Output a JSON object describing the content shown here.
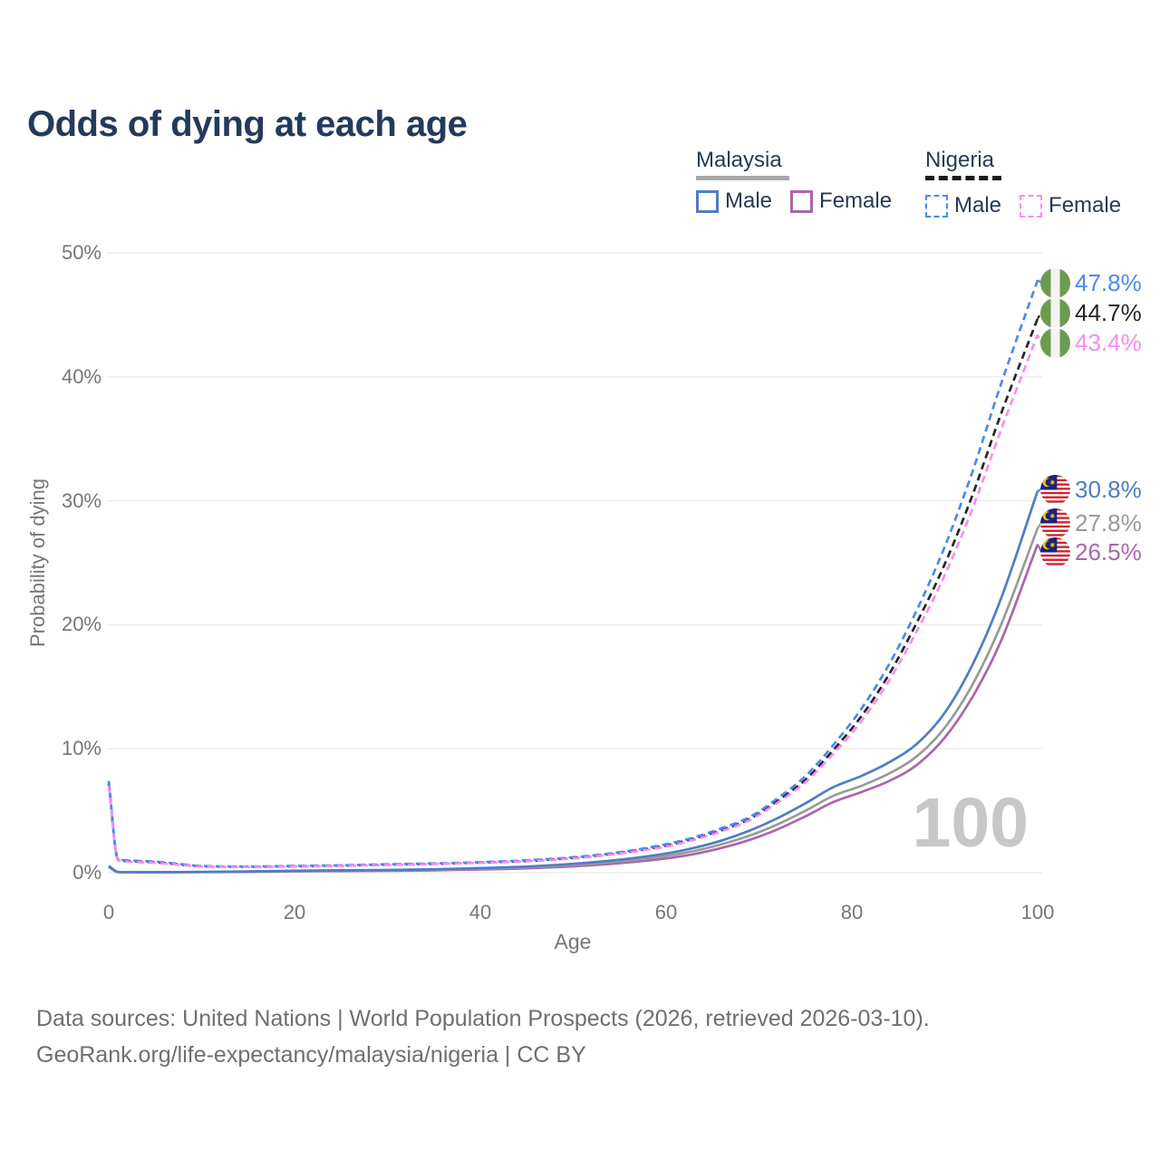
{
  "page": {
    "title": "Odds of dying at each age"
  },
  "legend": {
    "malaysia": {
      "label": "Malaysia",
      "male_label": "Male",
      "female_label": "Female"
    },
    "nigeria": {
      "label": "Nigeria",
      "male_label": "Male",
      "female_label": "Female"
    }
  },
  "colors": {
    "title_text": "#233a5b",
    "legend_text": "#263a58",
    "axis_text": "#767676",
    "grid": "#ececec",
    "watermark": "#c7c7c7",
    "footer_text": "#6f6f6f",
    "malaysia_underline": "#a8a8a8",
    "nigeria_underline": "#1a1a1a",
    "malaysia_male": "#4e7dc4",
    "malaysia_all": "#9a9a9a",
    "malaysia_female": "#aa66ad",
    "nigeria_male": "#4a8af0",
    "nigeria_all": "#262626",
    "nigeria_female": "#f98bf2",
    "flag_nigeria_green": "#6b9c4e",
    "flag_malaysia_red": "#d0232e",
    "flag_malaysia_blue": "#1a237a",
    "flag_malaysia_yellow": "#f8c300",
    "flag_white": "#f4f4f0"
  },
  "chart_data": {
    "type": "line",
    "title": "Odds of dying at each age",
    "xlabel": "Age",
    "ylabel": "Probability of dying",
    "xlim": [
      0,
      100
    ],
    "ylim": [
      0,
      50
    ],
    "x_ticks": [
      0,
      20,
      40,
      60,
      80,
      100
    ],
    "y_tick_labels": [
      "0%",
      "10%",
      "20%",
      "30%",
      "40%",
      "50%"
    ],
    "grid": "horizontal",
    "age_watermark": "100",
    "series": [
      {
        "name": "Nigeria Male",
        "country": "Nigeria",
        "sex": "Male",
        "dashed": true,
        "color": "#4a8af0",
        "end_label": "47.8%",
        "end_value": 47.8,
        "flag": "nigeria",
        "ages": [
          0,
          1,
          2,
          5,
          10,
          15,
          20,
          25,
          30,
          35,
          40,
          45,
          50,
          55,
          60,
          63,
          66,
          69,
          72,
          75,
          78,
          81,
          84,
          87,
          90,
          93,
          96,
          100
        ],
        "values": [
          7.4,
          1.1,
          1.0,
          0.9,
          0.55,
          0.5,
          0.55,
          0.6,
          0.68,
          0.75,
          0.85,
          1.0,
          1.25,
          1.65,
          2.3,
          2.85,
          3.6,
          4.5,
          6.0,
          7.8,
          10.3,
          13.2,
          16.8,
          21.2,
          26.3,
          32.4,
          39.3,
          47.8
        ]
      },
      {
        "name": "Nigeria Overall",
        "country": "Nigeria",
        "sex": "Both",
        "dashed": true,
        "color": "#262626",
        "end_label": "44.7%",
        "end_value": 44.7,
        "flag": "nigeria",
        "ages": [
          0,
          1,
          2,
          5,
          10,
          15,
          20,
          25,
          30,
          35,
          40,
          45,
          50,
          55,
          60,
          63,
          66,
          69,
          72,
          75,
          78,
          81,
          84,
          87,
          90,
          93,
          96,
          100
        ],
        "values": [
          7.2,
          1.05,
          0.95,
          0.85,
          0.52,
          0.48,
          0.52,
          0.58,
          0.65,
          0.72,
          0.82,
          0.95,
          1.2,
          1.6,
          2.2,
          2.75,
          3.45,
          4.35,
          5.8,
          7.5,
          9.9,
          12.6,
          16.0,
          20.2,
          24.9,
          30.5,
          36.9,
          44.7
        ]
      },
      {
        "name": "Nigeria Female",
        "country": "Nigeria",
        "sex": "Female",
        "dashed": true,
        "color": "#f98bf2",
        "end_label": "43.4%",
        "end_value": 43.4,
        "flag": "nigeria",
        "ages": [
          0,
          1,
          2,
          5,
          10,
          15,
          20,
          25,
          30,
          35,
          40,
          45,
          50,
          55,
          60,
          63,
          66,
          69,
          72,
          75,
          78,
          81,
          84,
          87,
          90,
          93,
          96,
          100
        ],
        "values": [
          7.0,
          1.0,
          0.9,
          0.8,
          0.5,
          0.46,
          0.5,
          0.55,
          0.62,
          0.7,
          0.8,
          0.92,
          1.15,
          1.55,
          2.1,
          2.65,
          3.35,
          4.25,
          5.65,
          7.3,
          9.6,
          12.2,
          15.5,
          19.5,
          24.0,
          29.4,
          35.6,
          43.4
        ]
      },
      {
        "name": "Malaysia Male",
        "country": "Malaysia",
        "sex": "Male",
        "dashed": false,
        "color": "#4e7dc4",
        "end_label": "30.8%",
        "end_value": 30.8,
        "flag": "malaysia",
        "ages": [
          0,
          1,
          2,
          5,
          10,
          15,
          20,
          25,
          30,
          35,
          40,
          45,
          50,
          55,
          60,
          63,
          66,
          69,
          72,
          75,
          78,
          81,
          84,
          87,
          90,
          93,
          96,
          100
        ],
        "values": [
          0.55,
          0.06,
          0.05,
          0.045,
          0.06,
          0.1,
          0.16,
          0.19,
          0.22,
          0.28,
          0.37,
          0.5,
          0.72,
          1.05,
          1.55,
          2.0,
          2.6,
          3.4,
          4.4,
          5.6,
          6.9,
          7.8,
          8.9,
          10.4,
          12.9,
          16.8,
          22.0,
          30.8
        ]
      },
      {
        "name": "Malaysia Overall",
        "country": "Malaysia",
        "sex": "Both",
        "dashed": false,
        "color": "#9a9a9a",
        "end_label": "27.8%",
        "end_value": 27.8,
        "flag": "malaysia",
        "ages": [
          0,
          1,
          2,
          5,
          10,
          15,
          20,
          25,
          30,
          35,
          40,
          45,
          50,
          55,
          60,
          63,
          66,
          69,
          72,
          75,
          78,
          81,
          84,
          87,
          90,
          93,
          96,
          100
        ],
        "values": [
          0.5,
          0.055,
          0.045,
          0.04,
          0.055,
          0.09,
          0.14,
          0.17,
          0.19,
          0.24,
          0.32,
          0.44,
          0.63,
          0.92,
          1.35,
          1.75,
          2.3,
          3.0,
          3.9,
          5.0,
          6.2,
          7.0,
          8.0,
          9.4,
          11.7,
          15.2,
          19.9,
          27.8
        ]
      },
      {
        "name": "Malaysia Female",
        "country": "Malaysia",
        "sex": "Female",
        "dashed": false,
        "color": "#aa66ad",
        "end_label": "26.5%",
        "end_value": 26.5,
        "flag": "malaysia",
        "ages": [
          0,
          1,
          2,
          5,
          10,
          15,
          20,
          25,
          30,
          35,
          40,
          45,
          50,
          55,
          60,
          63,
          66,
          69,
          72,
          75,
          78,
          81,
          84,
          87,
          90,
          93,
          96,
          100
        ],
        "values": [
          0.45,
          0.05,
          0.04,
          0.035,
          0.05,
          0.075,
          0.11,
          0.13,
          0.15,
          0.19,
          0.26,
          0.36,
          0.52,
          0.77,
          1.15,
          1.5,
          2.0,
          2.65,
          3.5,
          4.55,
          5.7,
          6.5,
          7.4,
          8.7,
          10.9,
          14.2,
          18.6,
          26.5
        ]
      }
    ]
  },
  "footer": {
    "line1": "Data sources: United Nations | World Population Prospects (2026, retrieved 2026-03-10).",
    "line2": "GeoRank.org/life-expectancy/malaysia/nigeria | CC BY"
  }
}
